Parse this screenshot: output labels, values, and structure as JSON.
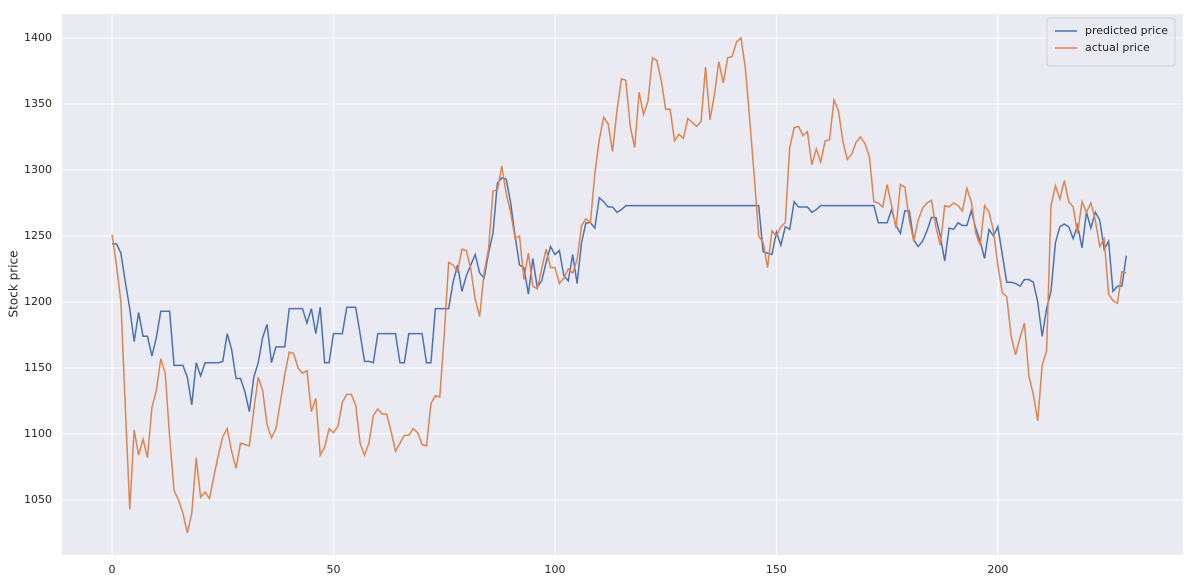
{
  "chart_data": {
    "type": "line",
    "ylabel": "Stock price",
    "x": [
      0,
      1,
      2,
      3,
      4,
      5,
      6,
      7,
      8,
      9,
      10,
      11,
      12,
      13,
      14,
      15,
      16,
      17,
      18,
      19,
      20,
      21,
      22,
      23,
      24,
      25,
      26,
      27,
      28,
      29,
      30,
      31,
      32,
      33,
      34,
      35,
      36,
      37,
      38,
      39,
      40,
      41,
      42,
      43,
      44,
      45,
      46,
      47,
      48,
      49,
      50,
      51,
      52,
      53,
      54,
      55,
      56,
      57,
      58,
      59,
      60,
      61,
      62,
      63,
      64,
      65,
      66,
      67,
      68,
      69,
      70,
      71,
      72,
      73,
      74,
      75,
      76,
      77,
      78,
      79,
      80,
      81,
      82,
      83,
      84,
      85,
      86,
      87,
      88,
      89,
      90,
      91,
      92,
      93,
      94,
      95,
      96,
      97,
      98,
      99,
      100,
      101,
      102,
      103,
      104,
      105,
      106,
      107,
      108,
      109,
      110,
      111,
      112,
      113,
      114,
      115,
      116,
      117,
      118,
      119,
      120,
      121,
      122,
      123,
      124,
      125,
      126,
      127,
      128,
      129,
      130,
      131,
      132,
      133,
      134,
      135,
      136,
      137,
      138,
      139,
      140,
      141,
      142,
      143,
      144,
      145,
      146,
      147,
      148,
      149,
      150,
      151,
      152,
      153,
      154,
      155,
      156,
      157,
      158,
      159,
      160,
      161,
      162,
      163,
      164,
      165,
      166,
      167,
      168,
      169,
      170,
      171,
      172,
      173,
      174,
      175,
      176,
      177,
      178,
      179,
      180,
      181,
      182,
      183,
      184,
      185,
      186,
      187,
      188,
      189,
      190,
      191,
      192,
      193,
      194,
      195,
      196,
      197,
      198,
      199,
      200,
      201,
      202,
      203,
      204,
      205,
      206,
      207,
      208,
      209,
      210,
      211,
      212,
      213,
      214,
      215,
      216,
      217,
      218,
      219,
      220,
      221,
      222,
      223,
      224,
      225,
      226,
      227,
      228,
      229
    ],
    "series": [
      {
        "name": "predicted price",
        "color": "#4c72b0",
        "values": [
          1244,
          1244,
          1237,
          1215,
          1195,
          1170,
          1192,
          1174,
          1174,
          1159,
          1173,
          1193,
          1193,
          1193,
          1152,
          1152,
          1152,
          1143,
          1122,
          1154,
          1144,
          1154,
          1154,
          1154,
          1154,
          1155,
          1176,
          1164,
          1142,
          1142,
          1132,
          1117,
          1143,
          1154,
          1173,
          1183,
          1154,
          1166,
          1166,
          1166,
          1195,
          1195,
          1195,
          1195,
          1184,
          1195,
          1176,
          1196,
          1154,
          1154,
          1176,
          1176,
          1176,
          1196,
          1196,
          1196,
          1176,
          1155,
          1155,
          1154,
          1176,
          1176,
          1176,
          1176,
          1176,
          1154,
          1154,
          1176,
          1176,
          1176,
          1176,
          1154,
          1154,
          1195,
          1195,
          1195,
          1195,
          1215,
          1228,
          1208,
          1220,
          1228,
          1236,
          1222,
          1218,
          1237,
          1252,
          1290,
          1294,
          1293,
          1275,
          1250,
          1228,
          1226,
          1206,
          1233,
          1211,
          1216,
          1230,
          1242,
          1236,
          1239,
          1220,
          1216,
          1236,
          1214,
          1245,
          1260,
          1260,
          1256,
          1279,
          1276,
          1272,
          1272,
          1268,
          1270,
          1273,
          1273,
          1273,
          1273,
          1273,
          1273,
          1273,
          1273,
          1273,
          1273,
          1273,
          1273,
          1273,
          1273,
          1273,
          1273,
          1273,
          1273,
          1273,
          1273,
          1273,
          1273,
          1273,
          1273,
          1273,
          1273,
          1273,
          1273,
          1273,
          1273,
          1273,
          1238,
          1237,
          1236,
          1253,
          1243,
          1257,
          1255,
          1276,
          1272,
          1272,
          1272,
          1268,
          1270,
          1273,
          1273,
          1273,
          1273,
          1273,
          1273,
          1273,
          1273,
          1273,
          1273,
          1273,
          1273,
          1273,
          1260,
          1260,
          1260,
          1270,
          1258,
          1252,
          1269,
          1269,
          1247,
          1242,
          1246,
          1254,
          1264,
          1264,
          1250,
          1231,
          1256,
          1255,
          1260,
          1258,
          1258,
          1269,
          1256,
          1246,
          1233,
          1255,
          1250,
          1257,
          1236,
          1215,
          1215,
          1214,
          1212,
          1217,
          1217,
          1215,
          1200,
          1174,
          1195,
          1208,
          1245,
          1257,
          1259,
          1257,
          1248,
          1258,
          1241,
          1268,
          1256,
          1268,
          1262,
          1240,
          1246,
          1208,
          1212,
          1212,
          1235
        ]
      },
      {
        "name": "actual price",
        "color": "#dd8452",
        "values": [
          1251,
          1228,
          1200,
          1120,
          1043,
          1103,
          1084,
          1096,
          1082,
          1120,
          1133,
          1157,
          1146,
          1098,
          1057,
          1050,
          1040,
          1025,
          1040,
          1082,
          1052,
          1056,
          1051,
          1068,
          1084,
          1098,
          1104,
          1087,
          1074,
          1093,
          1092,
          1091,
          1118,
          1143,
          1133,
          1107,
          1097,
          1104,
          1124,
          1145,
          1162,
          1161,
          1150,
          1146,
          1148,
          1117,
          1127,
          1084,
          1090,
          1104,
          1101,
          1106,
          1124,
          1130,
          1130,
          1122,
          1093,
          1084,
          1093,
          1114,
          1119,
          1115,
          1115,
          1102,
          1087,
          1093,
          1099,
          1099,
          1104,
          1101,
          1092,
          1091,
          1123,
          1129,
          1128,
          1175,
          1230,
          1228,
          1223,
          1240,
          1239,
          1225,
          1202,
          1189,
          1222,
          1240,
          1284,
          1285,
          1303,
          1282,
          1268,
          1248,
          1250,
          1217,
          1237,
          1212,
          1210,
          1225,
          1240,
          1226,
          1226,
          1214,
          1218,
          1225,
          1222,
          1232,
          1258,
          1263,
          1260,
          1297,
          1323,
          1340,
          1335,
          1314,
          1345,
          1369,
          1368,
          1333,
          1317,
          1359,
          1342,
          1352,
          1385,
          1383,
          1368,
          1346,
          1346,
          1322,
          1327,
          1324,
          1339,
          1336,
          1333,
          1337,
          1378,
          1338,
          1357,
          1382,
          1366,
          1385,
          1386,
          1397,
          1400,
          1377,
          1337,
          1295,
          1250,
          1245,
          1226,
          1254,
          1250,
          1257,
          1260,
          1317,
          1332,
          1333,
          1326,
          1329,
          1304,
          1316,
          1306,
          1322,
          1323,
          1353,
          1345,
          1322,
          1308,
          1312,
          1321,
          1325,
          1320,
          1310,
          1276,
          1275,
          1272,
          1289,
          1273,
          1256,
          1289,
          1287,
          1262,
          1246,
          1262,
          1271,
          1275,
          1277,
          1257,
          1243,
          1273,
          1272,
          1275,
          1273,
          1269,
          1286,
          1276,
          1252,
          1243,
          1273,
          1268,
          1254,
          1228,
          1207,
          1204,
          1174,
          1160,
          1173,
          1184,
          1144,
          1130,
          1110,
          1152,
          1163,
          1273,
          1288,
          1278,
          1292,
          1276,
          1272,
          1252,
          1276,
          1268,
          1275,
          1262,
          1242,
          1248,
          1206,
          1201,
          1199,
          1223,
          1222
        ]
      }
    ],
    "xlim": [
      -11.3,
      241.8
    ],
    "ylim": [
      1008.3,
      1418.2
    ],
    "xticks": [
      0,
      50,
      100,
      150,
      200
    ],
    "yticks": [
      1050,
      1100,
      1150,
      1200,
      1250,
      1300,
      1350,
      1400
    ],
    "grid": true,
    "legend": "upper right"
  }
}
